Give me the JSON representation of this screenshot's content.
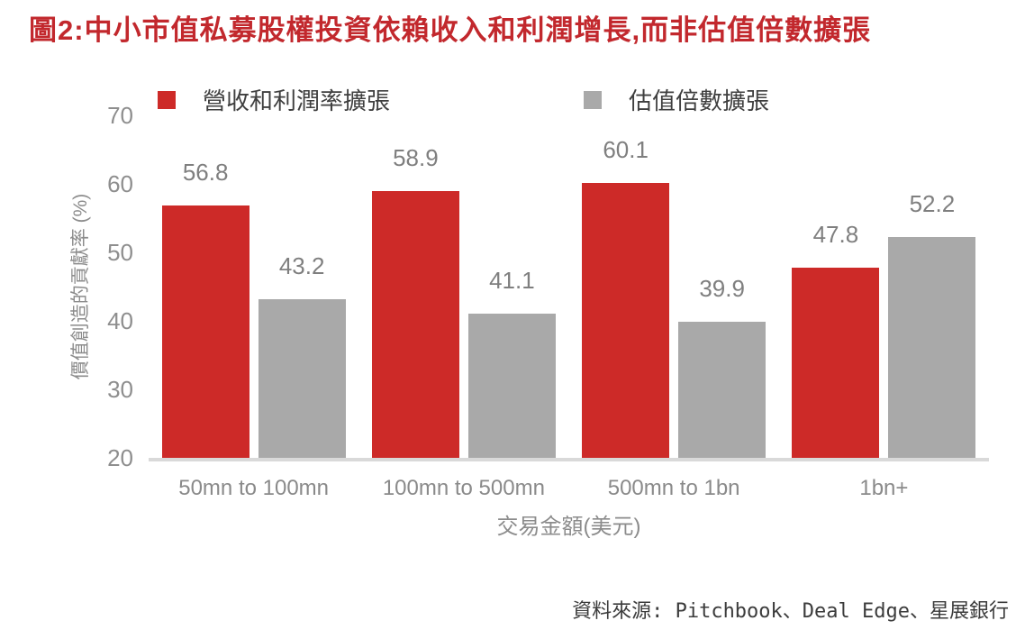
{
  "figure": {
    "title": "圖2:中小市值私募股權投資依賴收入和利潤增長,而非估值倍數擴張",
    "source": "資料來源: Pitchbook、Deal Edge、星展銀行"
  },
  "chart_data": {
    "type": "bar",
    "title": "中小市值私募股權投資依賴收入和利潤增長,而非估值倍數擴張",
    "categories": [
      "50mn to 100mn",
      "100mn to 500mn",
      "500mn to 1bn",
      "1bn+"
    ],
    "series": [
      {
        "name": "營收和利潤率擴張",
        "color": "#cd2a28",
        "values": [
          56.8,
          58.9,
          60.1,
          47.8
        ]
      },
      {
        "name": "估值倍數擴張",
        "color": "#a9a9a9",
        "values": [
          43.2,
          41.1,
          39.9,
          52.2
        ]
      }
    ],
    "xlabel": "交易金額(美元)",
    "ylabel": "價值創造的貢獻率 (%)",
    "ylim": [
      20,
      70
    ],
    "yticks": [
      20,
      30,
      40,
      50,
      60,
      70
    ],
    "grid": false,
    "legend_position": "top",
    "value_labels": true,
    "baseline_color": "#d9d9d9"
  }
}
